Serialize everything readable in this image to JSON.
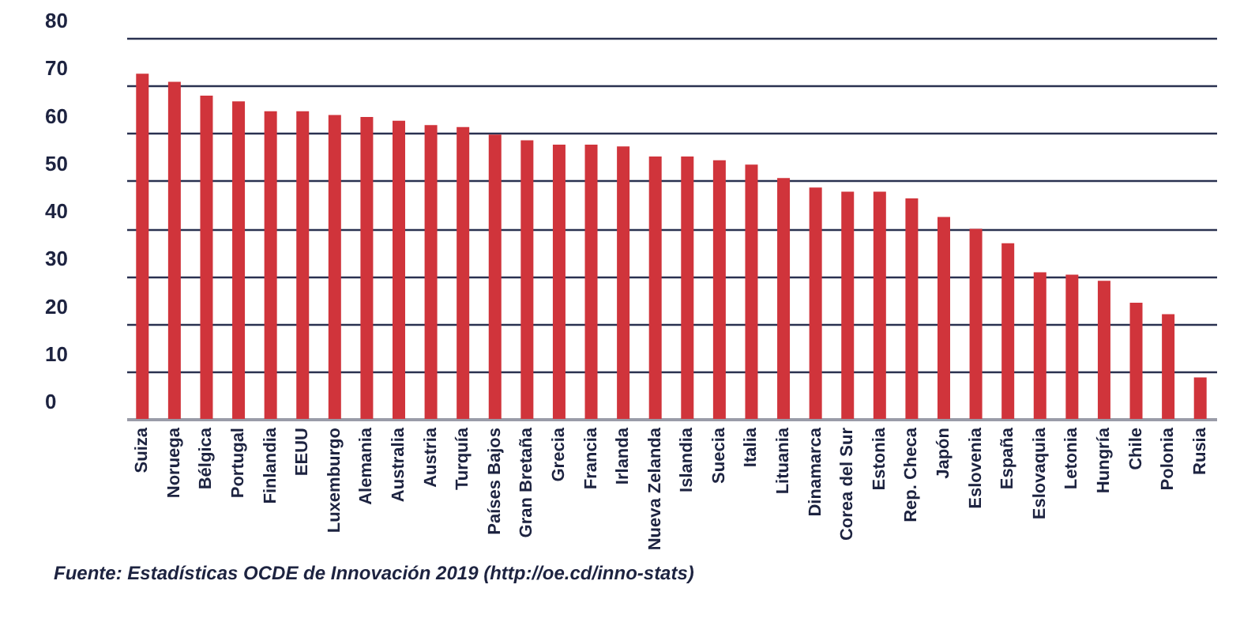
{
  "chart_data": {
    "type": "bar",
    "annotations": [
      "Fuente: Estadísticas OCDE de Innovación 2019 (http://oe.cd/inno-stats)"
    ],
    "categories": [
      "Suiza",
      "Noruega",
      "Bélgica",
      "Portugal",
      "Finlandia",
      "EEUU",
      "Luxemburgo",
      "Alemania",
      "Australia",
      "Austria",
      "Turquía",
      "Países Bajos",
      "Gran Bretaña",
      "Grecia",
      "Francia",
      "Irlanda",
      "Nueva Zelanda",
      "Islandia",
      "Suecia",
      "Italia",
      "Lituania",
      "Dinamarca",
      "Corea del Sur",
      "Estonia",
      "Rep. Checa",
      "Japón",
      "Eslovenia",
      "España",
      "Eslovaquia",
      "Letonia",
      "Hungría",
      "Chile",
      "Polonia",
      "Rusia"
    ],
    "values": [
      72.5,
      70.8,
      67.9,
      66.7,
      64.6,
      64.6,
      63.8,
      63.4,
      62.6,
      61.7,
      61.3,
      59.7,
      58.5,
      57.6,
      57.6,
      57.2,
      55.1,
      55.1,
      54.3,
      53.4,
      50.6,
      48.6,
      47.7,
      47.7,
      46.3,
      42.4,
      39.9,
      36.9,
      30.8,
      30.3,
      29.0,
      24.4,
      22.0,
      8.7
    ],
    "color": "#d0343b",
    "ylim": [
      0,
      80
    ],
    "yticks": [
      0,
      10,
      20,
      30,
      40,
      50,
      60,
      70,
      80
    ],
    "grid": "y"
  }
}
